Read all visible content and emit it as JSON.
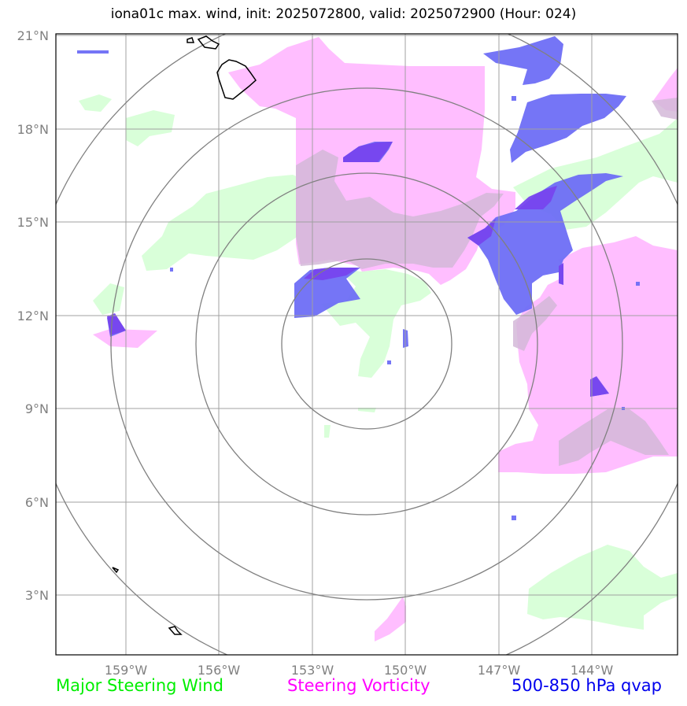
{
  "title": "iona01c max. wind, init: 2025072800, valid: 2025072900 (Hour: 024)",
  "lat_ticks": [
    "21°N",
    "18°N",
    "15°N",
    "12°N",
    "9°N",
    "6°N",
    "3°N"
  ],
  "lon_ticks": [
    "159°W",
    "156°W",
    "153°W",
    "150°W",
    "147°W",
    "144°W"
  ],
  "legend": {
    "wind": "Major Steering Wind",
    "vorticity": "Steering Vorticity",
    "qvap": "500-850 hPa qvap"
  },
  "colors": {
    "wind": "#00ee00",
    "vorticity": "#ff00ff",
    "qvap": "#0000ee",
    "wind_fill": "#ccffcc",
    "vorticity_fill": "#ffbbff",
    "qvap_fill": "#7777ff",
    "range_rings": "#808080",
    "coastline": "#000000"
  }
}
